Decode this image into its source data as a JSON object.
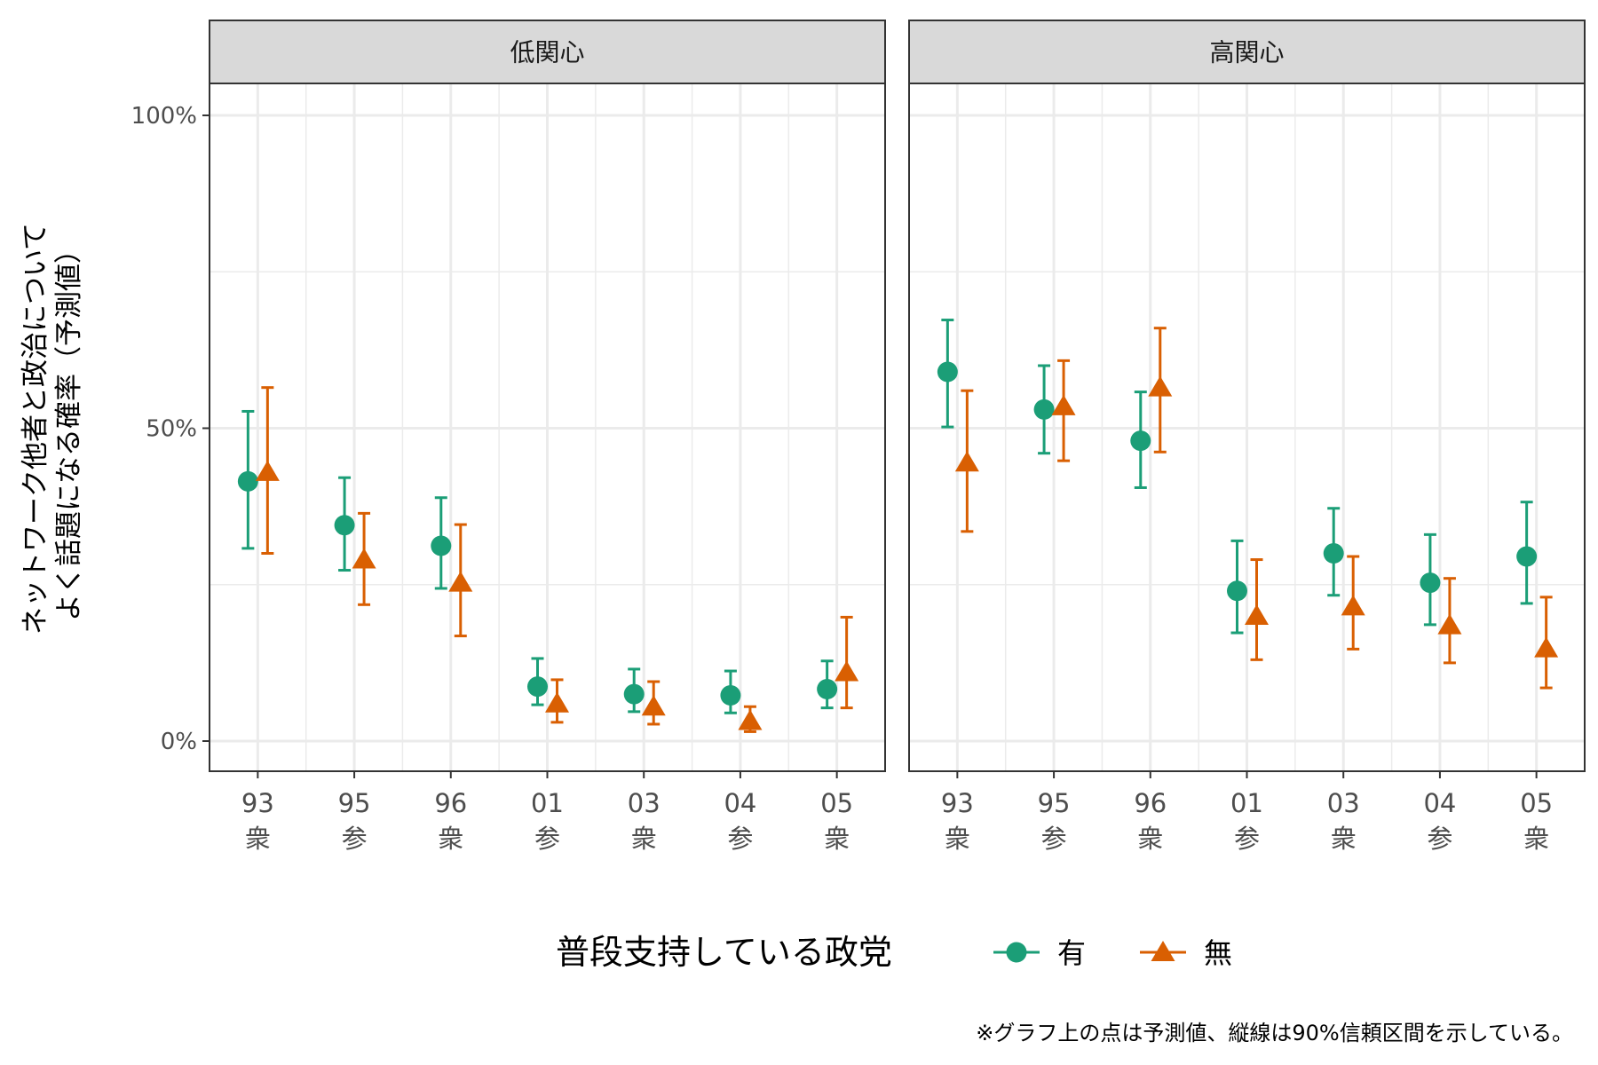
{
  "chart_data": {
    "type": "scatter",
    "panels": [
      "低関心",
      "高関心"
    ],
    "categories": [
      "93\n衆",
      "95\n参",
      "96\n衆",
      "01\n参",
      "03\n衆",
      "04\n参",
      "05\n衆"
    ],
    "ylabel": [
      "ネットワーク他者と政治について",
      "よく話題になる確率（予測値）"
    ],
    "yticks": [
      "0%",
      "50%",
      "100%"
    ],
    "ylim": [
      0,
      1
    ],
    "legend": {
      "title": "普段支持している政党",
      "position": "bottom"
    },
    "series": [
      {
        "name": "有",
        "color": "#1b9e77",
        "shape": "circle",
        "panels": [
          {
            "values": [
              0.415,
              0.345,
              0.312,
              0.087,
              0.075,
              0.073,
              0.083
            ],
            "lower": [
              0.308,
              0.273,
              0.244,
              0.058,
              0.047,
              0.045,
              0.053
            ],
            "upper": [
              0.527,
              0.421,
              0.389,
              0.132,
              0.115,
              0.112,
              0.128
            ]
          },
          {
            "values": [
              0.59,
              0.53,
              0.48,
              0.24,
              0.3,
              0.253,
              0.295
            ],
            "lower": [
              0.502,
              0.46,
              0.405,
              0.173,
              0.233,
              0.186,
              0.22
            ],
            "upper": [
              0.673,
              0.6,
              0.558,
              0.32,
              0.372,
              0.33,
              0.382
            ]
          }
        ]
      },
      {
        "name": "無",
        "color": "#d95f02",
        "shape": "triangle",
        "panels": [
          {
            "values": [
              0.43,
              0.29,
              0.253,
              0.06,
              0.055,
              0.032,
              0.11
            ],
            "lower": [
              0.3,
              0.218,
              0.168,
              0.03,
              0.027,
              0.015,
              0.053
            ],
            "upper": [
              0.565,
              0.364,
              0.346,
              0.098,
              0.095,
              0.055,
              0.198
            ]
          },
          {
            "values": [
              0.445,
              0.535,
              0.565,
              0.2,
              0.215,
              0.185,
              0.148
            ],
            "lower": [
              0.335,
              0.448,
              0.462,
              0.13,
              0.147,
              0.125,
              0.085
            ],
            "upper": [
              0.56,
              0.608,
              0.66,
              0.29,
              0.295,
              0.26,
              0.23
            ]
          }
        ]
      }
    ]
  },
  "caption": "※グラフ上の点は予測値、縦線は90%信頼区間を示している。"
}
